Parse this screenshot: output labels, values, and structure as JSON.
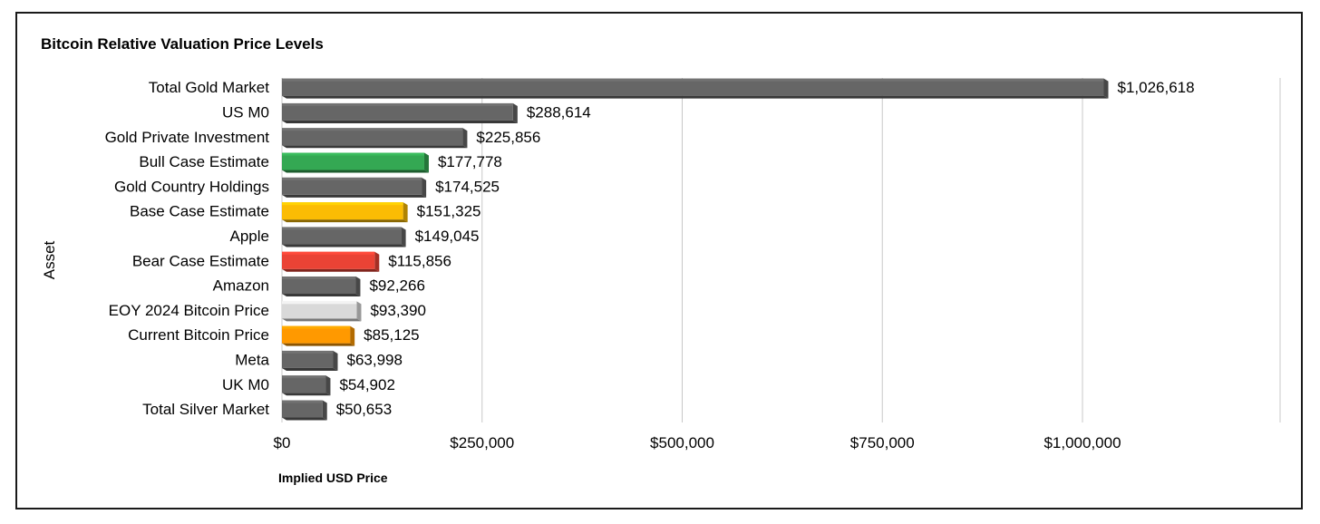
{
  "chart_data": {
    "type": "bar",
    "orientation": "horizontal",
    "title": "Bitcoin Relative Valuation Price Levels",
    "xlabel": "Implied USD Price",
    "ylabel": "Asset",
    "xlim": [
      0,
      1250000
    ],
    "x_ticks": [
      0,
      250000,
      500000,
      750000,
      1000000
    ],
    "x_tick_labels": [
      "$0",
      "$250,000",
      "$500,000",
      "$750,000",
      "$1,000,000"
    ],
    "grid": "vertical",
    "categories": [
      "Total Gold Market",
      "US M0",
      "Gold Private Investment",
      "Bull Case Estimate",
      "Gold Country Holdings",
      "Base Case Estimate",
      "Apple",
      "Bear Case Estimate",
      "Amazon",
      "EOY 2024 Bitcoin Price",
      "Current Bitcoin Price",
      "Meta",
      "UK M0",
      "Total Silver Market"
    ],
    "values": [
      1026618,
      288614,
      225856,
      177778,
      174525,
      151325,
      149045,
      115856,
      92266,
      93390,
      85125,
      63998,
      54902,
      50653
    ],
    "data_labels": [
      "$1,026,618",
      "$288,614",
      "$225,856",
      "$177,778",
      "$174,525",
      "$151,325",
      "$149,045",
      "$115,856",
      "$92,266",
      "$93,390",
      "$85,125",
      "$63,998",
      "$54,902",
      "$50,653"
    ],
    "colors": [
      "#666666",
      "#666666",
      "#666666",
      "#34a853",
      "#666666",
      "#fbbc04",
      "#666666",
      "#ea4335",
      "#666666",
      "#d9d9d9",
      "#ff9900",
      "#666666",
      "#666666",
      "#666666"
    ]
  }
}
